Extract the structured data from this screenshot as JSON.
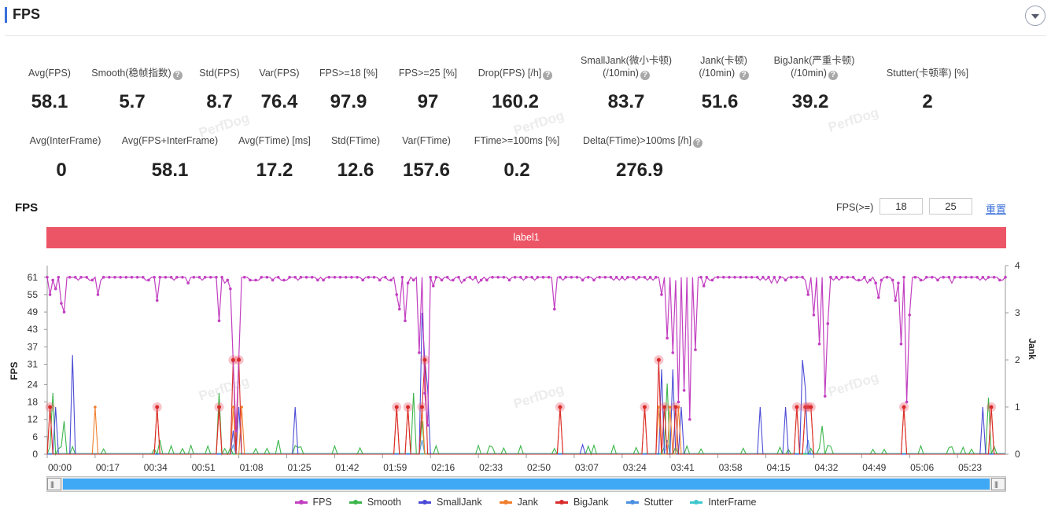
{
  "header": {
    "title": "FPS"
  },
  "metrics_row1": [
    {
      "label": "Avg(FPS)",
      "value": "58.1",
      "help": false
    },
    {
      "label": "Smooth(稳帧指数)",
      "value": "5.7",
      "help": true
    },
    {
      "label": "Std(FPS)",
      "value": "8.7",
      "help": false
    },
    {
      "label": "Var(FPS)",
      "value": "76.4",
      "help": false
    },
    {
      "label": "FPS>=18 [%]",
      "value": "97.9",
      "help": false
    },
    {
      "label": "FPS>=25 [%]",
      "value": "97",
      "help": false
    },
    {
      "label": "Drop(FPS) [/h]",
      "value": "160.2",
      "help": true
    },
    {
      "label": "SmallJank(微小卡顿)",
      "label2": "(/10min)",
      "value": "83.7",
      "help": true
    },
    {
      "label": "Jank(卡顿)",
      "label2": "(/10min)",
      "value": "51.6",
      "help": true
    },
    {
      "label": "BigJank(严重卡顿)",
      "label2": "(/10min)",
      "value": "39.2",
      "help": true
    },
    {
      "label": "Stutter(卡顿率) [%]",
      "value": "2",
      "help": false
    }
  ],
  "metrics_row2": [
    {
      "label": "Avg(InterFrame)",
      "value": "0",
      "help": false
    },
    {
      "label": "Avg(FPS+InterFrame)",
      "value": "58.1",
      "help": false
    },
    {
      "label": "Avg(FTime) [ms]",
      "value": "17.2",
      "help": false
    },
    {
      "label": "Std(FTime)",
      "value": "12.6",
      "help": false
    },
    {
      "label": "Var(FTime)",
      "value": "157.6",
      "help": false
    },
    {
      "label": "FTime>=100ms [%]",
      "value": "0.2",
      "help": false
    },
    {
      "label": "Delta(FTime)>100ms [/h]",
      "value": "276.9",
      "help": true
    }
  ],
  "chart_section": {
    "title": "FPS",
    "threshold_label": "FPS(>=)",
    "threshold_1": "18",
    "threshold_2": "25",
    "reset_label": "重置",
    "band_label": "label1",
    "watermark": "PerfDog"
  },
  "chart_data": {
    "type": "line",
    "ylabel": "FPS",
    "y2label": "Jank",
    "y_ticks": [
      0,
      6,
      12,
      18,
      24,
      31,
      37,
      43,
      49,
      55,
      61
    ],
    "y2_ticks": [
      0,
      1,
      2,
      3,
      4
    ],
    "x_ticks": [
      "00:00",
      "00:17",
      "00:34",
      "00:51",
      "01:08",
      "01:25",
      "01:42",
      "01:59",
      "02:16",
      "02:33",
      "02:50",
      "03:07",
      "03:24",
      "03:41",
      "03:58",
      "04:15",
      "04:32",
      "04:49",
      "05:06",
      "05:23"
    ],
    "x_range_seconds": [
      0,
      340
    ],
    "legend": [
      {
        "name": "FPS",
        "color": "#c23fc1"
      },
      {
        "name": "Smooth",
        "color": "#3cb54a"
      },
      {
        "name": "SmallJank",
        "color": "#4a4ad6"
      },
      {
        "name": "Jank",
        "color": "#f07f2e"
      },
      {
        "name": "BigJank",
        "color": "#d92b2b"
      },
      {
        "name": "Stutter",
        "color": "#4a8fe0"
      },
      {
        "name": "InterFrame",
        "color": "#3ec7cf"
      }
    ],
    "fps_dips": [
      [
        1,
        55
      ],
      [
        3,
        57
      ],
      [
        5,
        52
      ],
      [
        6,
        49
      ],
      [
        18,
        55
      ],
      [
        39,
        53
      ],
      [
        61,
        46
      ],
      [
        65,
        57
      ],
      [
        66,
        32
      ],
      [
        67,
        8
      ],
      [
        68,
        33
      ],
      [
        122,
        60
      ],
      [
        124,
        55
      ],
      [
        125,
        50
      ],
      [
        127,
        46
      ],
      [
        132,
        35
      ],
      [
        134,
        21
      ],
      [
        135,
        10
      ],
      [
        137,
        58
      ],
      [
        180,
        50
      ],
      [
        218,
        55
      ],
      [
        220,
        40
      ],
      [
        222,
        35
      ],
      [
        224,
        18
      ],
      [
        226,
        22
      ],
      [
        228,
        12
      ],
      [
        230,
        36
      ],
      [
        233,
        58
      ],
      [
        270,
        55
      ],
      [
        272,
        48
      ],
      [
        274,
        38
      ],
      [
        276,
        20
      ],
      [
        277,
        45
      ],
      [
        295,
        54
      ],
      [
        301,
        53
      ],
      [
        303,
        38
      ],
      [
        305,
        18
      ],
      [
        306,
        48
      ]
    ],
    "jank_events_seconds": [
      1,
      17,
      39,
      61,
      66,
      69,
      124,
      128,
      133,
      182,
      212,
      217,
      221,
      224,
      266,
      269,
      270,
      271,
      304,
      335
    ],
    "bigjank_events": [
      [
        1,
        1
      ],
      [
        39,
        1
      ],
      [
        61,
        1
      ],
      [
        66,
        2
      ],
      [
        68,
        2
      ],
      [
        124,
        1
      ],
      [
        128,
        1
      ],
      [
        133,
        1
      ],
      [
        134,
        2
      ],
      [
        182,
        1
      ],
      [
        212,
        1
      ],
      [
        217,
        2
      ],
      [
        219,
        1
      ],
      [
        223,
        1
      ],
      [
        266,
        1
      ],
      [
        269,
        1
      ],
      [
        270,
        1
      ],
      [
        271,
        1
      ],
      [
        304,
        1
      ],
      [
        335,
        1
      ]
    ],
    "smalljank_events": [
      [
        3,
        1.0
      ],
      [
        9,
        2.1
      ],
      [
        66,
        0.5
      ],
      [
        68,
        1.0
      ],
      [
        88,
        1.0
      ],
      [
        133,
        3.0
      ],
      [
        134,
        2.0
      ],
      [
        135,
        1.4
      ],
      [
        190,
        0.2
      ],
      [
        218,
        1.8
      ],
      [
        222,
        1.8
      ],
      [
        225,
        1.0
      ],
      [
        253,
        1.0
      ],
      [
        262,
        1.0
      ],
      [
        268,
        2.0
      ],
      [
        269,
        1.4
      ],
      [
        332,
        1.0
      ]
    ],
    "smooth_events": [
      [
        2,
        1.3
      ],
      [
        6,
        0.7
      ],
      [
        40,
        0.3
      ],
      [
        61,
        1.3
      ],
      [
        82,
        0.3
      ],
      [
        130,
        1.3
      ],
      [
        133,
        0.7
      ],
      [
        220,
        1.5
      ],
      [
        275,
        0.6
      ],
      [
        334,
        1.2
      ]
    ]
  }
}
